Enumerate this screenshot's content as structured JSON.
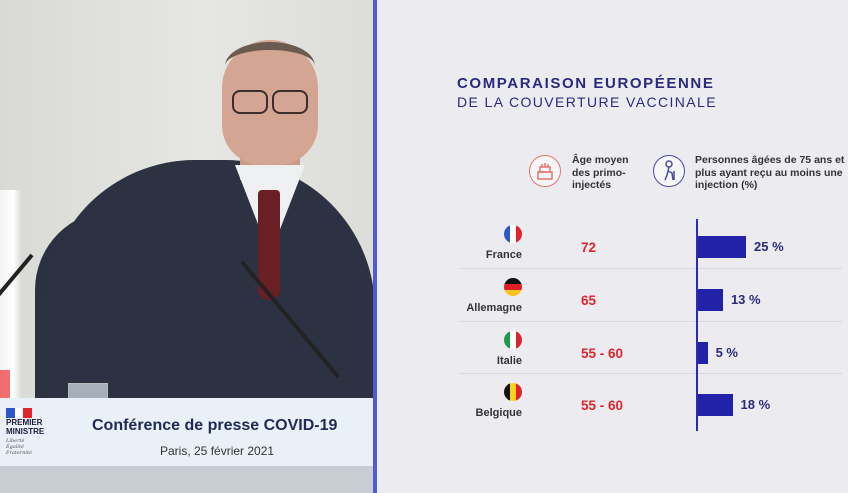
{
  "press": {
    "logo_line1": "PREMIER",
    "logo_line2": "MINISTRE",
    "motto": [
      "Liberté",
      "Égalité",
      "Fraternité"
    ],
    "title": "Conférence de presse COVID-19",
    "subtitle": "Paris, 25 février 2021"
  },
  "slide": {
    "title_line1": "COMPARAISON EUROPÉENNE",
    "title_line2": "DE LA COUVERTURE VACCINALE"
  },
  "colors": {
    "accent_blue": "#2222a8",
    "age_red": "#e0242c",
    "title_navy": "#2a2a7c"
  },
  "chart_data": {
    "type": "table",
    "columns": [
      {
        "icon": "birthday-cake-icon",
        "header": "Âge moyen des primo-injectés"
      },
      {
        "icon": "elderly-person-icon",
        "header": "Personnes âgées de 75 ans et plus ayant reçu au moins une injection (%)"
      }
    ],
    "rows": [
      {
        "country": "France",
        "flag": [
          "#2d56c8",
          "#ffffff",
          "#e1242c"
        ],
        "flag_orientation": "vertical",
        "mean_age": "72",
        "pct": 25,
        "pct_label": "25 %"
      },
      {
        "country": "Allemagne",
        "flag": [
          "#111111",
          "#dd1f26",
          "#f7c51e"
        ],
        "flag_orientation": "horizontal",
        "mean_age": "65",
        "pct": 13,
        "pct_label": "13 %"
      },
      {
        "country": "Italie",
        "flag": [
          "#1f9a4a",
          "#ffffff",
          "#d8262e"
        ],
        "flag_orientation": "vertical",
        "mean_age": "55 - 60",
        "pct": 5,
        "pct_label": "5 %"
      },
      {
        "country": "Belgique",
        "flag": [
          "#111111",
          "#f7d21e",
          "#e1242c"
        ],
        "flag_orientation": "vertical",
        "mean_age": "55 - 60",
        "pct": 18,
        "pct_label": "18 %"
      }
    ],
    "pct_axis_max": 25
  }
}
